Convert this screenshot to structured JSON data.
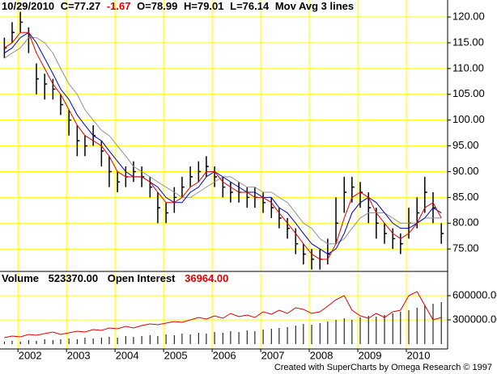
{
  "chart_data": {
    "type": "ohlc",
    "header": [
      "10/29/2010",
      "C=77.27",
      "-1.67",
      "O=78.99",
      "H=79.01",
      "L=76.14",
      "Mov Avg 3 lines"
    ],
    "volume_header": [
      "Volume",
      "523370.00",
      "Open Interest",
      "36964.00"
    ],
    "footer": "Created with SuperCharts by Omega Research © 1997",
    "x": [
      2001.72,
      2001.88,
      2002.05,
      2002.22,
      2002.38,
      2002.55,
      2002.72,
      2002.88,
      2003.05,
      2003.22,
      2003.38,
      2003.55,
      2003.72,
      2003.88,
      2004.05,
      2004.22,
      2004.38,
      2004.55,
      2004.72,
      2004.88,
      2005.05,
      2005.22,
      2005.38,
      2005.55,
      2005.72,
      2005.88,
      2006.05,
      2006.22,
      2006.38,
      2006.55,
      2006.72,
      2006.88,
      2007.05,
      2007.22,
      2007.38,
      2007.55,
      2007.72,
      2007.88,
      2008.05,
      2008.22,
      2008.38,
      2008.55,
      2008.72,
      2008.88,
      2009.05,
      2009.22,
      2009.38,
      2009.55,
      2009.72,
      2009.88,
      2010.05,
      2010.22,
      2010.38,
      2010.55,
      2010.72
    ],
    "high": [
      116,
      119,
      121,
      118,
      111,
      109,
      108,
      105,
      102,
      99,
      97,
      99,
      96,
      93,
      90,
      91,
      92,
      91,
      89,
      86,
      84,
      87,
      89,
      91,
      92,
      93,
      91,
      89,
      88,
      88,
      87,
      87,
      86,
      85,
      83,
      81,
      79,
      76,
      75,
      75,
      77,
      85,
      89,
      89,
      88,
      86,
      83,
      80,
      79,
      78,
      83,
      85,
      89,
      86,
      80
    ],
    "low": [
      112,
      115,
      117,
      113,
      105,
      104,
      104,
      101,
      97,
      93,
      93,
      95,
      91,
      87,
      86,
      87,
      88,
      87,
      85,
      80,
      80,
      82,
      85,
      87,
      88,
      89,
      87,
      85,
      84,
      84,
      83,
      83,
      82,
      81,
      79,
      77,
      74,
      72,
      71,
      71,
      72,
      76,
      82,
      84,
      83,
      80,
      77,
      76,
      75,
      74,
      77,
      79,
      82,
      80,
      76
    ],
    "close": [
      114,
      117,
      119,
      116,
      108,
      107,
      106,
      103,
      100,
      96,
      95,
      97,
      94,
      90,
      88,
      89,
      90,
      89,
      87,
      83,
      82,
      85,
      87,
      89,
      90,
      91,
      89,
      87,
      86,
      86,
      85,
      85,
      84,
      83,
      81,
      79,
      76,
      74,
      73,
      73,
      74,
      80,
      86,
      87,
      86,
      83,
      80,
      78,
      77,
      76,
      80,
      82,
      86,
      83,
      78
    ],
    "series": [
      {
        "color": "#e00000",
        "values": [
          114,
          115,
          117,
          117,
          113,
          110,
          107,
          105,
          102,
          99,
          97,
          96,
          95,
          93,
          90,
          89,
          89,
          89,
          88,
          86,
          84,
          84,
          85,
          87,
          88,
          90,
          90,
          88,
          87,
          86,
          86,
          85,
          85,
          84,
          82,
          80,
          78,
          76,
          74,
          73,
          73,
          76,
          81,
          85,
          86,
          85,
          82,
          80,
          78,
          77,
          78,
          80,
          83,
          84,
          81
        ]
      },
      {
        "color": "#0000c0",
        "values": [
          113,
          114,
          116,
          117,
          115,
          112,
          109,
          106,
          104,
          101,
          99,
          97,
          96,
          94,
          92,
          90,
          89,
          89,
          88,
          87,
          85,
          84,
          84,
          86,
          87,
          89,
          90,
          89,
          88,
          87,
          86,
          86,
          85,
          85,
          83,
          82,
          80,
          78,
          76,
          75,
          74,
          75,
          78,
          82,
          84,
          85,
          84,
          82,
          80,
          79,
          79,
          80,
          81,
          83,
          82
        ]
      },
      {
        "color": "#909090",
        "values": [
          112,
          113,
          114,
          116,
          116,
          115,
          113,
          110,
          107,
          105,
          102,
          100,
          98,
          97,
          95,
          93,
          91,
          90,
          89,
          88,
          87,
          86,
          85,
          85,
          86,
          87,
          88,
          89,
          89,
          88,
          87,
          87,
          86,
          86,
          85,
          84,
          82,
          80,
          79,
          77,
          76,
          76,
          77,
          79,
          81,
          82,
          82,
          82,
          81,
          80,
          80,
          80,
          81,
          81,
          81
        ]
      }
    ],
    "volume": {
      "color": "#000000",
      "values": [
        30000,
        40000,
        30000,
        50000,
        40000,
        60000,
        50000,
        60000,
        70000,
        60000,
        80000,
        70000,
        80000,
        90000,
        80000,
        100000,
        90000,
        100000,
        110000,
        100000,
        120000,
        110000,
        130000,
        120000,
        140000,
        130000,
        150000,
        140000,
        160000,
        150000,
        170000,
        160000,
        180000,
        190000,
        200000,
        210000,
        230000,
        250000,
        240000,
        260000,
        280000,
        300000,
        320000,
        300000,
        330000,
        350000,
        340000,
        360000,
        380000,
        400000,
        420000,
        450000,
        480000,
        500000,
        520000
      ]
    },
    "open_interest": {
      "color": "#e00000",
      "values": [
        80000,
        100000,
        90000,
        120000,
        110000,
        130000,
        150000,
        120000,
        140000,
        160000,
        150000,
        180000,
        170000,
        200000,
        190000,
        220000,
        200000,
        230000,
        250000,
        240000,
        260000,
        280000,
        270000,
        300000,
        330000,
        310000,
        350000,
        320000,
        380000,
        340000,
        360000,
        330000,
        400000,
        370000,
        420000,
        380000,
        450000,
        430000,
        380000,
        400000,
        470000,
        550000,
        600000,
        420000,
        350000,
        320000,
        380000,
        330000,
        400000,
        420000,
        600000,
        650000,
        480000,
        300000,
        330000
      ]
    },
    "xlim": [
      2001.63,
      2010.85
    ],
    "xticks": [
      2002,
      2003,
      2004,
      2005,
      2006,
      2007,
      2008,
      2009,
      2010
    ],
    "ylim": [
      70.8,
      123.3
    ],
    "yticks": [
      {
        "value": 75,
        "label": "75.00"
      },
      {
        "value": 80,
        "label": "80.00"
      },
      {
        "value": 85,
        "label": "85.00"
      },
      {
        "value": 90,
        "label": "90.00"
      },
      {
        "value": 95,
        "label": "95.00"
      },
      {
        "value": 100,
        "label": "100.00"
      },
      {
        "value": 105,
        "label": "105.00"
      },
      {
        "value": 110,
        "label": "110.00"
      },
      {
        "value": 115,
        "label": "115.00"
      },
      {
        "value": 120,
        "label": "120.00"
      }
    ],
    "y2lim": [
      -60000,
      880000
    ],
    "y2ticks": [
      {
        "value": 300000,
        "label": "300000.00"
      },
      {
        "value": 600000,
        "label": "600000.00"
      }
    ],
    "grid": true,
    "grid_color": "#ffff00"
  }
}
